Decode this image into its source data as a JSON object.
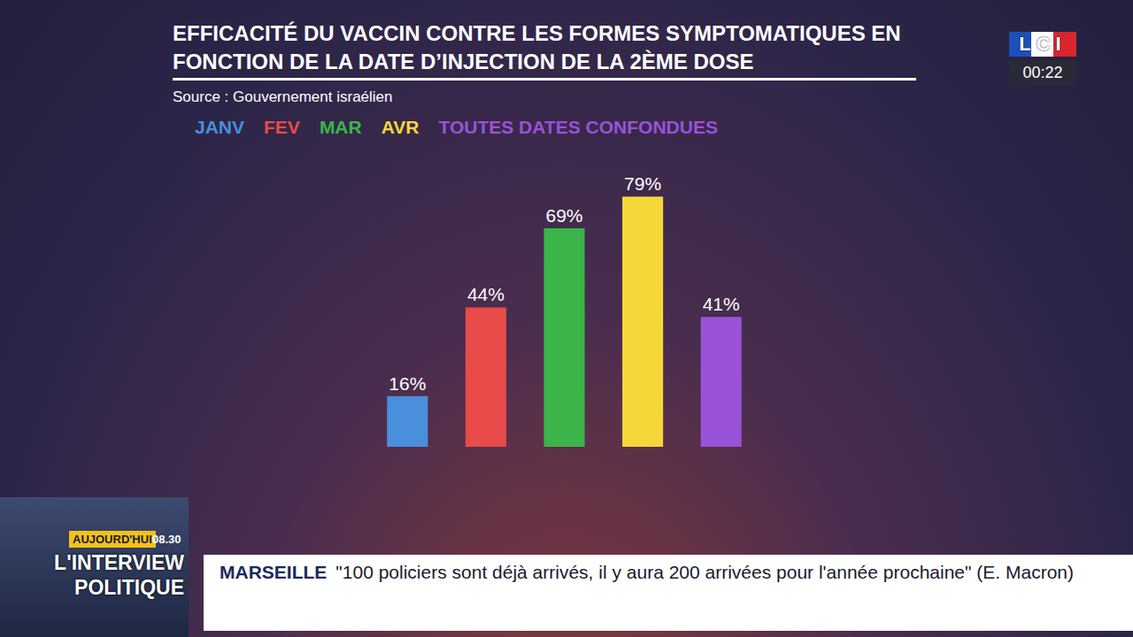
{
  "chart_data": {
    "type": "bar",
    "title": "EFFICACITÉ DU VACCIN CONTRE LES FORMES SYMPTOMATIQUES EN FONCTION DE LA DATE D’INJECTION DE LA 2ÈME DOSE",
    "subtitle": "Source : Gouvernement israélien",
    "categories": [
      "JANV",
      "FEV",
      "MAR",
      "AVR",
      "TOUTES DATES CONFONDUES"
    ],
    "values": [
      16,
      44,
      69,
      79,
      41
    ],
    "value_labels": [
      "16%",
      "44%",
      "69%",
      "79%",
      "41%"
    ],
    "colors": [
      "#4a8fdc",
      "#e94a4a",
      "#3bb54a",
      "#f6d73a",
      "#9a52d8"
    ],
    "data_labels": true,
    "ylim": [
      0,
      100
    ],
    "tick_labels": false,
    "grid": false
  },
  "overlay": {
    "channel": "LCI",
    "clock": "00:22",
    "badge": "AUJOURD'HUI",
    "time": "08.30",
    "program": "L'INTERVIEW POLITIQUE",
    "ticker_head": "MARSEILLE",
    "ticker_text": "\"100 policiers sont déjà arrivés, il y aura 200 arrivées pour l'année prochaine\" (E. Macron)"
  }
}
